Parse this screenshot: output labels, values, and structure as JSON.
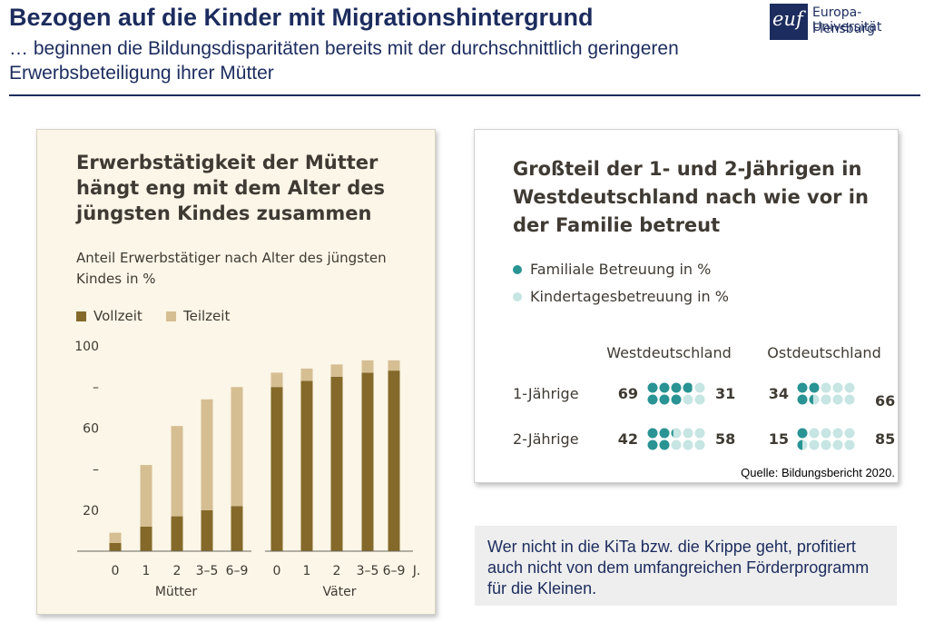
{
  "header": {
    "title": "Bezogen auf die Kinder mit Migrationshintergrund",
    "subtitle": "… beginnen die Bildungsdisparitäten bereits mit der durchschnittlich geringeren Erwerbsbeteiligung ihrer Mütter"
  },
  "logo": {
    "mark": "euf",
    "line1": "Europa-Universität",
    "line2": "Flensburg"
  },
  "callout": "Wer nicht in die KiTa bzw. die Krippe geht, profitiert auch nicht von dem umfangreichen Förderprogramm für die Kleinen.",
  "source": "Quelle: Bildungsbericht 2020.",
  "colors": {
    "vollzeit": "#84692a",
    "teilzeit": "#d6be93",
    "familiale": "#2a9394",
    "kita": "#c6e5e3",
    "navy": "#1c2c5e"
  },
  "chart_data": [
    {
      "type": "bar",
      "stacked": true,
      "title": "Erwerbstätigkeit der Mütter hängt eng mit dem Alter des jüngsten Kindes zusammen",
      "subtitle": "Anteil Erwerbstätiger nach Alter des jüngsten Kindes in %",
      "ylim": [
        0,
        100
      ],
      "yticks": [
        {
          "value": 100,
          "label": "100"
        },
        {
          "value": 80,
          "label": "–"
        },
        {
          "value": 60,
          "label": "60"
        },
        {
          "value": 40,
          "label": "–"
        },
        {
          "value": 20,
          "label": "20"
        }
      ],
      "x_unit": "J.",
      "legend": [
        {
          "name": "Vollzeit",
          "color": "#84692a"
        },
        {
          "name": "Teilzeit",
          "color": "#d6be93"
        }
      ],
      "groups": [
        {
          "name": "Mütter",
          "categories": [
            "0",
            "1",
            "2",
            "3–5",
            "6–9"
          ],
          "series": [
            {
              "name": "Vollzeit",
              "values": [
                4,
                12,
                17,
                20,
                22
              ]
            },
            {
              "name": "Teilzeit",
              "values": [
                5,
                30,
                44,
                54,
                58
              ]
            }
          ]
        },
        {
          "name": "Väter",
          "categories": [
            "0",
            "1",
            "2",
            "3–5",
            "6–9"
          ],
          "series": [
            {
              "name": "Vollzeit",
              "values": [
                80,
                83,
                85,
                87,
                88
              ]
            },
            {
              "name": "Teilzeit",
              "values": [
                7,
                6,
                6,
                6,
                5
              ]
            }
          ]
        }
      ]
    },
    {
      "type": "dot-matrix",
      "title": "Großteil der 1- und 2-Jährigen in Westdeutschland nach wie vor in der Familie betreut",
      "legend": [
        {
          "name": "Familiale Betreuung in %",
          "color": "#2a9394"
        },
        {
          "name": "Kindertagesbetreuung in %",
          "color": "#c6e5e3"
        }
      ],
      "columns": [
        "Westdeutschland",
        "Ostdeutschland"
      ],
      "rows": [
        {
          "label": "1-Jährige",
          "values": [
            {
              "familial": 69,
              "kita": 31
            },
            {
              "familial": 34,
              "kita": 66
            }
          ]
        },
        {
          "label": "2-Jährige",
          "values": [
            {
              "familial": 42,
              "kita": 58
            },
            {
              "familial": 15,
              "kita": 85
            }
          ]
        }
      ]
    }
  ]
}
